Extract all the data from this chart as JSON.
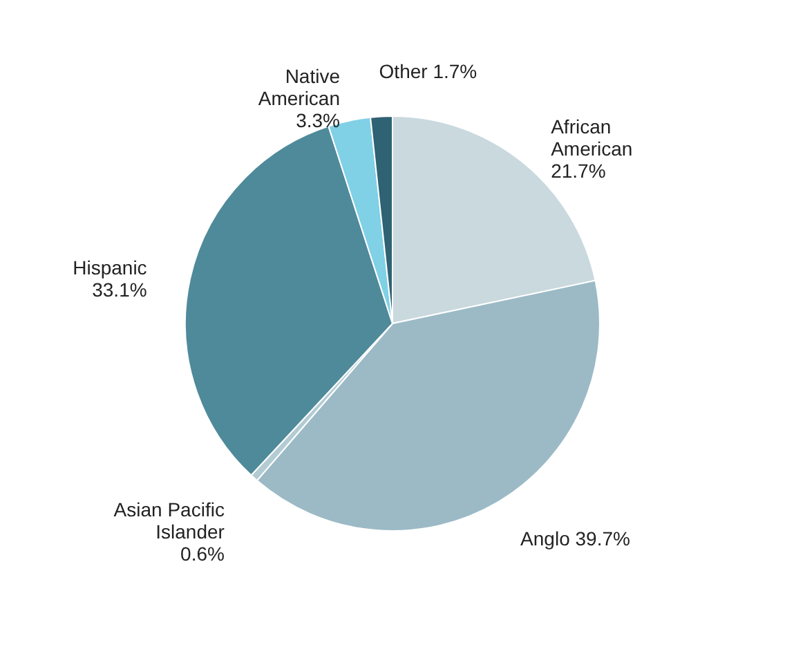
{
  "chart_data": {
    "type": "pie",
    "categories": [
      "African American",
      "Anglo",
      "Asian Pacific Islander",
      "Hispanic",
      "Native American",
      "Other"
    ],
    "values": [
      21.7,
      39.7,
      0.6,
      33.1,
      3.3,
      1.7
    ],
    "colors": [
      "#c9d9de",
      "#9bbac6",
      "#b3cbd3",
      "#4f8a9a",
      "#80d0e6",
      "#2f6272"
    ],
    "value_labels": [
      "21.7%",
      "39.7%",
      "0.6%",
      "33.1%",
      "3.3%",
      "1.7%"
    ]
  }
}
